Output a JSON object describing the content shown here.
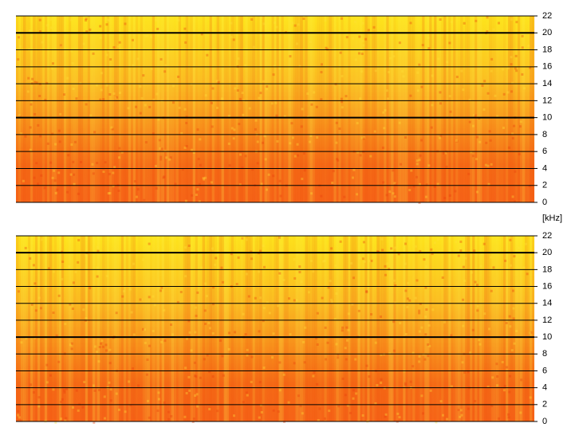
{
  "y_label": "[kHz]",
  "chart_data": [
    {
      "type": "spectrogram",
      "ylim": [
        0,
        22
      ],
      "yticks": [
        0,
        2,
        4,
        6,
        8,
        10,
        12,
        14,
        16,
        18,
        20,
        22
      ],
      "grid": true
    },
    {
      "type": "spectrogram",
      "ylim": [
        0,
        22
      ],
      "yticks": [
        0,
        2,
        4,
        6,
        8,
        10,
        12,
        14,
        16,
        18,
        20,
        22
      ],
      "grid": true
    }
  ]
}
